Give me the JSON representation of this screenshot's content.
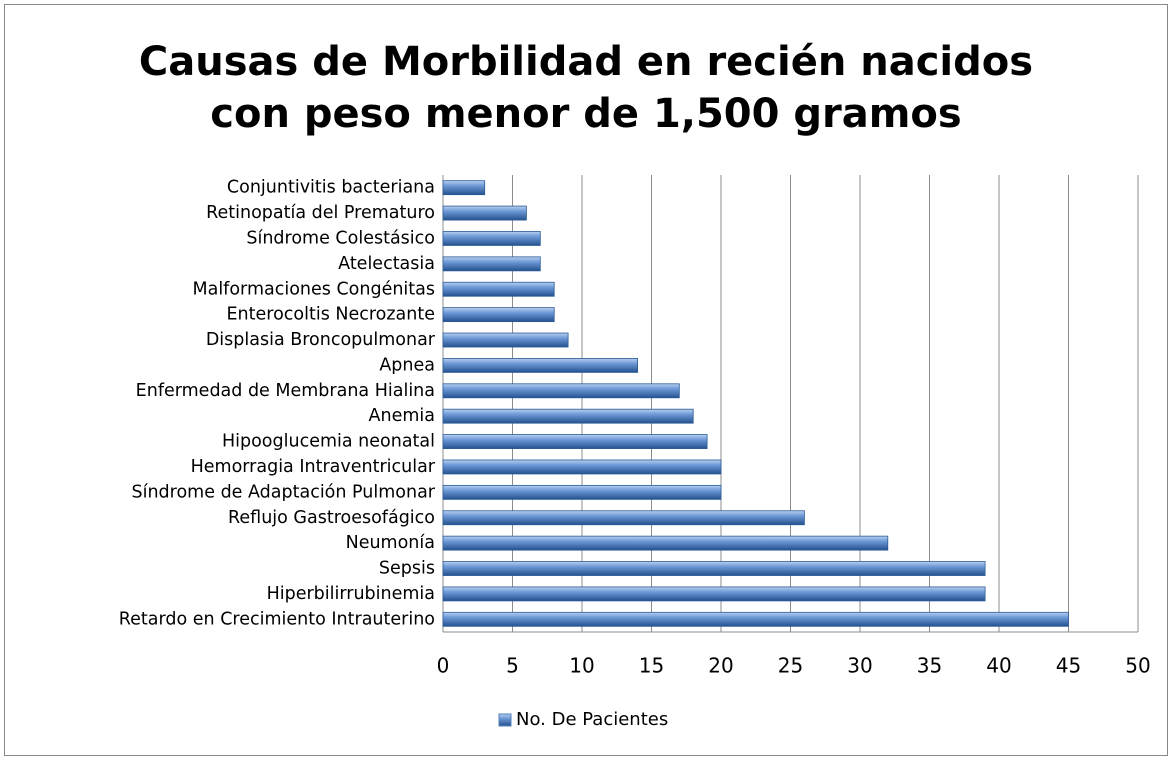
{
  "chart_data": {
    "type": "bar",
    "orientation": "horizontal",
    "title": "Causas de Morbilidad en recién nacidos con peso menor de 1,500 gramos",
    "categories": [
      "Conjuntivitis bacteriana",
      "Retinopatía del Prematuro",
      "Síndrome Colestásico",
      "Atelectasia",
      "Malformaciones Congénitas",
      "Enterocoltis Necrozante",
      "Displasia Broncopulmonar",
      "Apnea",
      "Enfermedad de Membrana Hialina",
      "Anemia",
      "Hipooglucemia neonatal",
      "Hemorragia Intraventricular",
      "Síndrome de Adaptación Pulmonar",
      "Reflujo Gastroesofágico",
      "Neumonía",
      "Sepsis",
      "Hiperbilirrubinemia",
      "Retardo en Crecimiento Intrauterino"
    ],
    "series": [
      {
        "name": "No. De Pacientes",
        "color": "#4f81bd",
        "values": [
          3,
          6,
          7,
          7,
          8,
          8,
          9,
          14,
          17,
          18,
          19,
          20,
          20,
          26,
          32,
          39,
          39,
          45
        ]
      }
    ],
    "xlim": [
      0,
      50
    ],
    "xticks": [
      0,
      5,
      10,
      15,
      20,
      25,
      30,
      35,
      40,
      45,
      50
    ],
    "grid": true,
    "legend": "bottom"
  }
}
